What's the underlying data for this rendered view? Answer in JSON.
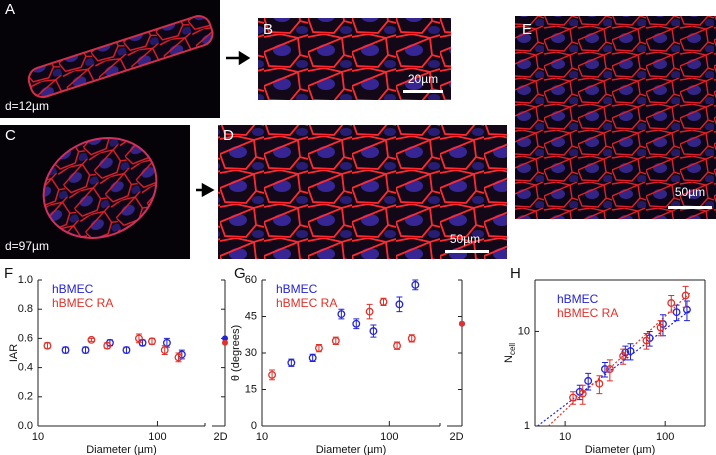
{
  "images": [
    {
      "label": "A",
      "caption": "d=12µm"
    },
    {
      "label": "B",
      "scale": "20µm"
    },
    {
      "label": "C",
      "caption": "d=97µm"
    },
    {
      "label": "D",
      "scale": "50µm"
    },
    {
      "label": "E",
      "scale": "50µm"
    }
  ],
  "chart_data": [
    {
      "type": "scatter",
      "label": "F",
      "xlabel": "Diameter (µm)",
      "ylabel": "IAR",
      "xscale": "log",
      "yscale": "linear",
      "xlim": [
        10,
        250
      ],
      "xticks": [
        10,
        100
      ],
      "ylim": [
        0,
        1
      ],
      "yticks": [
        {
          "value": 0,
          "label": "0.0"
        },
        {
          "value": 0.2,
          "label": "0.2"
        },
        {
          "value": 0.4,
          "label": "0.4"
        },
        {
          "value": 0.6,
          "label": "0.6"
        },
        {
          "value": 0.8,
          "label": "0.8"
        },
        {
          "value": 1,
          "label": "1.0"
        }
      ],
      "x2_label": "2D",
      "series": [
        {
          "name": "hBMEC",
          "color": "#2323d6",
          "x": [
            17,
            25,
            40,
            55,
            75,
            120,
            160
          ],
          "values": [
            0.52,
            0.52,
            0.57,
            0.52,
            0.57,
            0.57,
            0.49
          ],
          "errors": [
            0.02,
            0.02,
            0.02,
            0.02,
            0.02,
            0.03,
            0.03
          ],
          "value_2d": 0.6
        },
        {
          "name": "hBMEC RA",
          "color": "#e0312a",
          "x": [
            12,
            28,
            38,
            70,
            90,
            115,
            150
          ],
          "values": [
            0.55,
            0.59,
            0.55,
            0.6,
            0.58,
            0.52,
            0.47
          ],
          "errors": [
            0.02,
            0.01,
            0.02,
            0.03,
            0.02,
            0.03,
            0.03
          ],
          "value_2d": 0.57
        }
      ]
    },
    {
      "type": "scatter",
      "label": "G",
      "xlabel": "Diameter (µm)",
      "ylabel": "θ (degrees)",
      "xscale": "log",
      "yscale": "linear",
      "xlim": [
        10,
        250
      ],
      "xticks": [
        10,
        100
      ],
      "ylim": [
        0,
        60
      ],
      "yticks": [
        0,
        15,
        30,
        45,
        60
      ],
      "x2_label": "2D",
      "series": [
        {
          "name": "hBMEC",
          "color": "#2323d6",
          "x": [
            17,
            25,
            42,
            55,
            75,
            120,
            160
          ],
          "values": [
            26,
            28,
            46,
            42,
            39,
            50,
            58
          ],
          "errors": [
            1.5,
            1.5,
            2,
            2,
            2.5,
            3,
            2
          ],
          "value_2d": 42
        },
        {
          "name": "hBMEC RA",
          "color": "#e0312a",
          "x": [
            12,
            28,
            38,
            70,
            90,
            115,
            150
          ],
          "values": [
            21,
            32,
            35,
            47,
            51,
            33,
            36
          ],
          "errors": [
            2,
            1.5,
            1.5,
            3,
            1.5,
            1.5,
            1.5
          ],
          "value_2d": 42
        }
      ]
    },
    {
      "type": "scatter",
      "label": "H",
      "xlabel": "Diameter (µm)",
      "ylabel": "N",
      "ylabel_sub": "cell",
      "xscale": "log",
      "yscale": "log",
      "xlim": [
        5,
        250
      ],
      "xticks": [
        10,
        100
      ],
      "ylim": [
        1,
        35
      ],
      "yticks": [
        1,
        10
      ],
      "series": [
        {
          "name": "hBMEC",
          "color": "#2323d6",
          "x": [
            14,
            17,
            25,
            40,
            45,
            70,
            95,
            130,
            165
          ],
          "values": [
            2.3,
            3,
            4,
            6,
            6.2,
            8.5,
            12,
            16,
            17
          ],
          "errors": [
            0.4,
            0.6,
            0.7,
            1,
            1.2,
            1.5,
            3,
            3,
            4
          ]
        },
        {
          "name": "hBMEC RA",
          "color": "#e0312a",
          "x": [
            12,
            15,
            22,
            28,
            38,
            65,
            90,
            115,
            160
          ],
          "values": [
            2,
            2.2,
            2.8,
            4,
            5.5,
            8,
            11,
            20,
            24
          ],
          "errors": [
            0.3,
            0.5,
            0.6,
            1,
            1,
            1.5,
            2,
            4,
            6
          ]
        }
      ],
      "fits": [
        {
          "color": "#2323d6",
          "x": [
            5.3,
            180
          ],
          "values": [
            1,
            17
          ]
        },
        {
          "color": "#e0312a",
          "x": [
            6.8,
            180
          ],
          "values": [
            1,
            26
          ]
        }
      ]
    }
  ]
}
